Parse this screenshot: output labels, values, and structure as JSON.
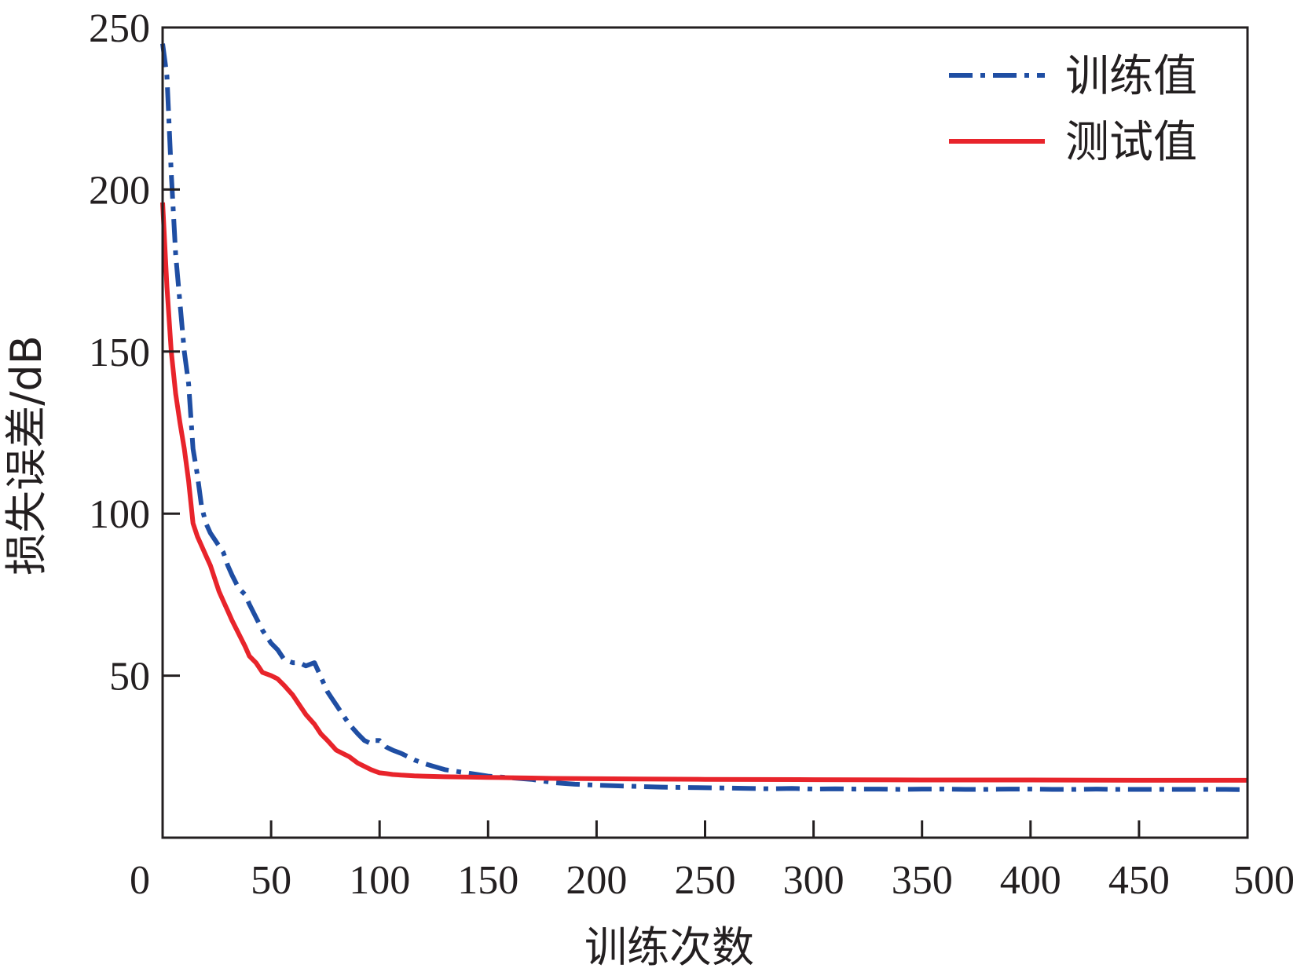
{
  "chart_data": {
    "type": "line",
    "title": "",
    "xlabel": "训练次数",
    "ylabel": "损失误差/dB",
    "xlim": [
      0,
      500
    ],
    "ylim": [
      0,
      250
    ],
    "xticks": [
      0,
      50,
      100,
      150,
      200,
      250,
      300,
      350,
      400,
      450,
      500
    ],
    "yticks": [
      50,
      100,
      150,
      200,
      250
    ],
    "grid": false,
    "legend_position": "top-right",
    "series": [
      {
        "name": "训练值",
        "color": "#1f4ea3",
        "style": "dash-dot",
        "x": [
          0,
          2,
          4,
          6,
          8,
          10,
          12,
          14,
          16,
          18,
          20,
          22,
          24,
          26,
          28,
          30,
          32,
          35,
          38,
          40,
          43,
          46,
          50,
          53,
          56,
          60,
          63,
          66,
          70,
          72,
          74,
          76,
          78,
          80,
          83,
          86,
          90,
          93,
          96,
          98,
          100,
          103,
          106,
          110,
          113,
          116,
          120,
          125,
          130,
          135,
          140,
          150,
          160,
          170,
          175,
          180,
          190,
          200,
          210,
          220,
          230,
          240,
          250,
          260,
          270,
          280,
          290,
          300,
          310,
          320,
          330,
          340,
          350,
          360,
          370,
          380,
          390,
          400,
          410,
          420,
          430,
          440,
          450,
          460,
          470,
          480,
          490,
          500
        ],
        "y": [
          245,
          235,
          205,
          180,
          165,
          150,
          140,
          120,
          112,
          102,
          97,
          94,
          92,
          90,
          88,
          84,
          81,
          77,
          75,
          72,
          68,
          64,
          60,
          58,
          55,
          54,
          54,
          53,
          54,
          51,
          48,
          45,
          43,
          41,
          38,
          35,
          32,
          30,
          29,
          30,
          30,
          28,
          27,
          26,
          25,
          24,
          23,
          22,
          21,
          20.5,
          20,
          19,
          18.5,
          18,
          17.5,
          17,
          16.5,
          16.2,
          16,
          15.8,
          15.6,
          15.5,
          15.4,
          15.3,
          15.2,
          15.1,
          15.2,
          15,
          15.1,
          15,
          15,
          14.9,
          15,
          15,
          14.9,
          14.9,
          15,
          15,
          14.9,
          14.9,
          15,
          14.9,
          14.9,
          14.9,
          14.9,
          14.9,
          14.9,
          14.8
        ]
      },
      {
        "name": "测试值",
        "color": "#e8242b",
        "style": "solid",
        "x": [
          0,
          2,
          4,
          6,
          8,
          10,
          12,
          14,
          16,
          18,
          20,
          22,
          24,
          26,
          28,
          30,
          32,
          35,
          38,
          40,
          43,
          46,
          50,
          53,
          56,
          60,
          63,
          66,
          70,
          73,
          76,
          80,
          83,
          86,
          90,
          93,
          96,
          98,
          100,
          103,
          106,
          110,
          113,
          116,
          120,
          125,
          130,
          140,
          150,
          160,
          170,
          180,
          200,
          220,
          250,
          300,
          350,
          400,
          450,
          500
        ],
        "y": [
          196,
          170,
          150,
          137,
          128,
          120,
          110,
          97,
          93,
          90,
          87,
          84,
          80,
          76,
          73,
          70,
          67,
          63,
          59,
          56,
          54,
          51,
          50,
          49,
          47,
          44,
          41,
          38,
          35,
          32,
          30,
          27,
          26,
          25,
          23,
          22,
          21,
          20.5,
          20,
          19.8,
          19.5,
          19.3,
          19.2,
          19.1,
          19,
          18.9,
          18.8,
          18.7,
          18.6,
          18.5,
          18.4,
          18.3,
          18.2,
          18.1,
          18,
          17.9,
          17.8,
          17.8,
          17.7,
          17.7
        ]
      }
    ]
  }
}
